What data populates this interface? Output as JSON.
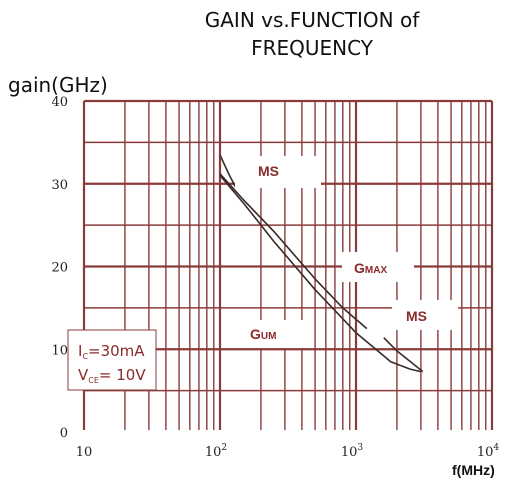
{
  "chart_data": {
    "type": "line",
    "title_line1": "GAIN vs.FUNCTION of",
    "title_line2": "FREQUENCY",
    "ylabel": "gain(GHz)",
    "xlabel": "f(MHz)",
    "x_scale": "log",
    "xlim": [
      10,
      10000
    ],
    "ylim": [
      0,
      40
    ],
    "x_ticks": [
      {
        "value": 10,
        "base": "10",
        "exp": ""
      },
      {
        "value": 100,
        "base": "10",
        "exp": "2"
      },
      {
        "value": 1000,
        "base": "10",
        "exp": "3"
      },
      {
        "value": 10000,
        "base": "10",
        "exp": "4"
      }
    ],
    "y_ticks": [
      0,
      10,
      20,
      30,
      40
    ],
    "grid": true,
    "series": [
      {
        "name": "MS",
        "x": [
          100,
          115,
          130
        ],
        "y": [
          33.5,
          31.3,
          29.6
        ]
      },
      {
        "name": "GMAX",
        "x": [
          100,
          150,
          250,
          500,
          800,
          1200
        ],
        "y": [
          31.2,
          28.0,
          24.2,
          18.5,
          15.0,
          12.5
        ]
      },
      {
        "name": "GUM",
        "x": [
          100,
          150,
          250,
          500,
          1000,
          1800,
          2500,
          3000
        ],
        "y": [
          31.0,
          27.6,
          23.0,
          17.2,
          12.0,
          8.5,
          7.6,
          7.3
        ]
      },
      {
        "name": "MS",
        "x": [
          1600,
          2000,
          2600,
          3100
        ],
        "y": [
          11.4,
          9.8,
          8.3,
          7.3
        ]
      }
    ],
    "labels": {
      "ms_upper": "MS",
      "gmax_main": "G",
      "gmax_sub": "MAX",
      "ms_lower": "MS",
      "gum_main": "G",
      "gum_sub": "UM"
    },
    "conditions": {
      "line1_main": "I",
      "line1_sub": "C",
      "line1_rest": "=30mA",
      "line2_main": "V",
      "line2_sub": "CE",
      "line2_rest": "= 10V"
    },
    "colors": {
      "grid": "#8b3a3a",
      "curve": "#3a2a2a",
      "label": "#8b2a2a",
      "axis_text": "#222222"
    }
  }
}
